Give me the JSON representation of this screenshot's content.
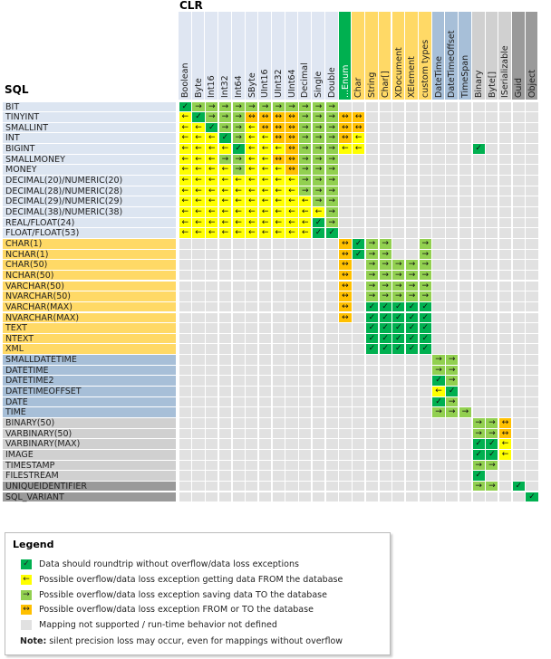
{
  "clr_title": "CLR",
  "sql_title": "SQL",
  "colors": {
    "C": "#00b050",
    "L": "#ffff00",
    "R": "#92d050",
    "B": "#ffc000",
    ".": "#e1e1e1"
  },
  "symbols": {
    "C": "✓",
    "L": "←",
    "R": "→",
    "B": "↔",
    ".": ""
  },
  "symbol_names": {
    "C": "check-icon",
    "L": "arrow-left-icon",
    "R": "arrow-right-icon",
    "B": "arrow-both-icon",
    ".": "empty-cell"
  },
  "clr_columns": [
    {
      "label": "Boolean",
      "group": "numeric"
    },
    {
      "label": "Byte",
      "group": "numeric"
    },
    {
      "label": "Int16",
      "group": "numeric"
    },
    {
      "label": "Int32",
      "group": "numeric"
    },
    {
      "label": "Int64",
      "group": "numeric"
    },
    {
      "label": "SByte",
      "group": "numeric"
    },
    {
      "label": "UInt16",
      "group": "numeric"
    },
    {
      "label": "UInt32",
      "group": "numeric"
    },
    {
      "label": "UInt64",
      "group": "numeric"
    },
    {
      "label": "Decimal",
      "group": "numeric"
    },
    {
      "label": "Single",
      "group": "numeric"
    },
    {
      "label": "Double",
      "group": "numeric"
    },
    {
      "label": "...Enum",
      "group": "enum"
    },
    {
      "label": "Char",
      "group": "char"
    },
    {
      "label": "String",
      "group": "char"
    },
    {
      "label": "Char[]",
      "group": "char"
    },
    {
      "label": "XDocument",
      "group": "char"
    },
    {
      "label": "XElement",
      "group": "char"
    },
    {
      "label": "custom types",
      "group": "char"
    },
    {
      "label": "DateTime",
      "group": "date"
    },
    {
      "label": "DateTimeOffset",
      "group": "date"
    },
    {
      "label": "TimeSpan",
      "group": "date"
    },
    {
      "label": "Binary",
      "group": "binary"
    },
    {
      "label": "Byte[]",
      "group": "binary"
    },
    {
      "label": "ISerializable",
      "group": "binary"
    },
    {
      "label": "Guid",
      "group": "other"
    },
    {
      "label": "Object",
      "group": "other"
    }
  ],
  "group_colors": {
    "numeric": "#dfe6f2",
    "enum": "#00b050",
    "char": "#ffd966",
    "date": "#a7bfd8",
    "binary": "#d0d0d0",
    "other": "#9a9a9a"
  },
  "sql_rows": [
    {
      "label": "BIT",
      "group": "numeric",
      "cells": "CRRRRRRRRRRR"
    },
    {
      "label": "TINYINT",
      "group": "numeric",
      "cells": "LCRRRBBBBRRRBB"
    },
    {
      "label": "SMALLINT",
      "group": "numeric",
      "cells": "LLCRRLBBBRRRBB"
    },
    {
      "label": "INT",
      "group": "numeric",
      "cells": "LLLCRLLBBRRRBL"
    },
    {
      "label": "BIGINT",
      "group": "numeric",
      "cells": "LLLLCLLLBRRRLL........C"
    },
    {
      "label": "SMALLMONEY",
      "group": "numeric",
      "cells": "LLLRRLLBBRRR"
    },
    {
      "label": "MONEY",
      "group": "numeric",
      "cells": "LLLLRLLLBRRR"
    },
    {
      "label": "DECIMAL(20)/NUMERIC(20)",
      "group": "numeric",
      "cells": "LLLLLLLLLRRR"
    },
    {
      "label": "DECIMAL(28)/NUMERIC(28)",
      "group": "numeric",
      "cells": "LLLLLLLLLRRR"
    },
    {
      "label": "DECIMAL(29)/NUMERIC(29)",
      "group": "numeric",
      "cells": "LLLLLLLLLLRR"
    },
    {
      "label": "DECIMAL(38)/NUMERIC(38)",
      "group": "numeric",
      "cells": "LLLLLLLLLLLR"
    },
    {
      "label": "REAL/FLOAT(24)",
      "group": "numeric",
      "cells": "LLLLLLLLLLCR"
    },
    {
      "label": "FLOAT/FLOAT(53)",
      "group": "numeric",
      "cells": "LLLLLLLLLLCC"
    },
    {
      "label": "CHAR(1)",
      "group": "char",
      "cells": "............BCRR..R"
    },
    {
      "label": "NCHAR(1)",
      "group": "char",
      "cells": "............BCRR..R"
    },
    {
      "label": "CHAR(50)",
      "group": "char",
      "cells": "............B.RRRRR"
    },
    {
      "label": "NCHAR(50)",
      "group": "char",
      "cells": "............B.RRRRR"
    },
    {
      "label": "VARCHAR(50)",
      "group": "char",
      "cells": "............B.RRRRR"
    },
    {
      "label": "NVARCHAR(50)",
      "group": "char",
      "cells": "............B.RRRRR"
    },
    {
      "label": "VARCHAR(MAX)",
      "group": "char",
      "cells": "............B.CCCCC"
    },
    {
      "label": "NVARCHAR(MAX)",
      "group": "char",
      "cells": "............B.CCCCC"
    },
    {
      "label": "TEXT",
      "group": "char",
      "cells": "..............CCCCC"
    },
    {
      "label": "NTEXT",
      "group": "char",
      "cells": "..............CCCCC"
    },
    {
      "label": "XML",
      "group": "char",
      "cells": "..............CCCCC"
    },
    {
      "label": "SMALLDATETIME",
      "group": "date",
      "cells": "...................RR"
    },
    {
      "label": "DATETIME",
      "group": "date",
      "cells": "...................RR"
    },
    {
      "label": "DATETIME2",
      "group": "date",
      "cells": "...................CR"
    },
    {
      "label": "DATETIMEOFFSET",
      "group": "date",
      "cells": "...................LC"
    },
    {
      "label": "DATE",
      "group": "date",
      "cells": "...................CR"
    },
    {
      "label": "TIME",
      "group": "date",
      "cells": "...................RRR"
    },
    {
      "label": "BINARY(50)",
      "group": "binary",
      "cells": "......................RRB"
    },
    {
      "label": "VARBINARY(50)",
      "group": "binary",
      "cells": "......................RRB"
    },
    {
      "label": "VARBINARY(MAX)",
      "group": "binary",
      "cells": "......................CCL"
    },
    {
      "label": "IMAGE",
      "group": "binary",
      "cells": "......................CCL"
    },
    {
      "label": "TIMESTAMP",
      "group": "binary",
      "cells": "......................RR"
    },
    {
      "label": "FILESTREAM",
      "group": "binary",
      "cells": "......................C"
    },
    {
      "label": "UNIQUEIDENTIFIER",
      "group": "other",
      "cells": "......................RR.C"
    },
    {
      "label": "SQL_VARIANT",
      "group": "other",
      "cells": "..........................C"
    }
  ],
  "legend": {
    "title": "Legend",
    "items": [
      {
        "code": "C",
        "text": "Data should roundtrip without overflow/data loss exceptions"
      },
      {
        "code": "L",
        "text": "Possible overflow/data loss exception getting data FROM the database"
      },
      {
        "code": "R",
        "text": "Possible overflow/data loss exception saving data TO the database"
      },
      {
        "code": "B",
        "text": "Possible overflow/data loss exception FROM or TO the database"
      },
      {
        "code": ".",
        "text": "Mapping not supported / run-time behavior not defined"
      }
    ],
    "note_label": "Note:",
    "note_text": " silent precision loss may occur, even for mappings without overflow"
  }
}
